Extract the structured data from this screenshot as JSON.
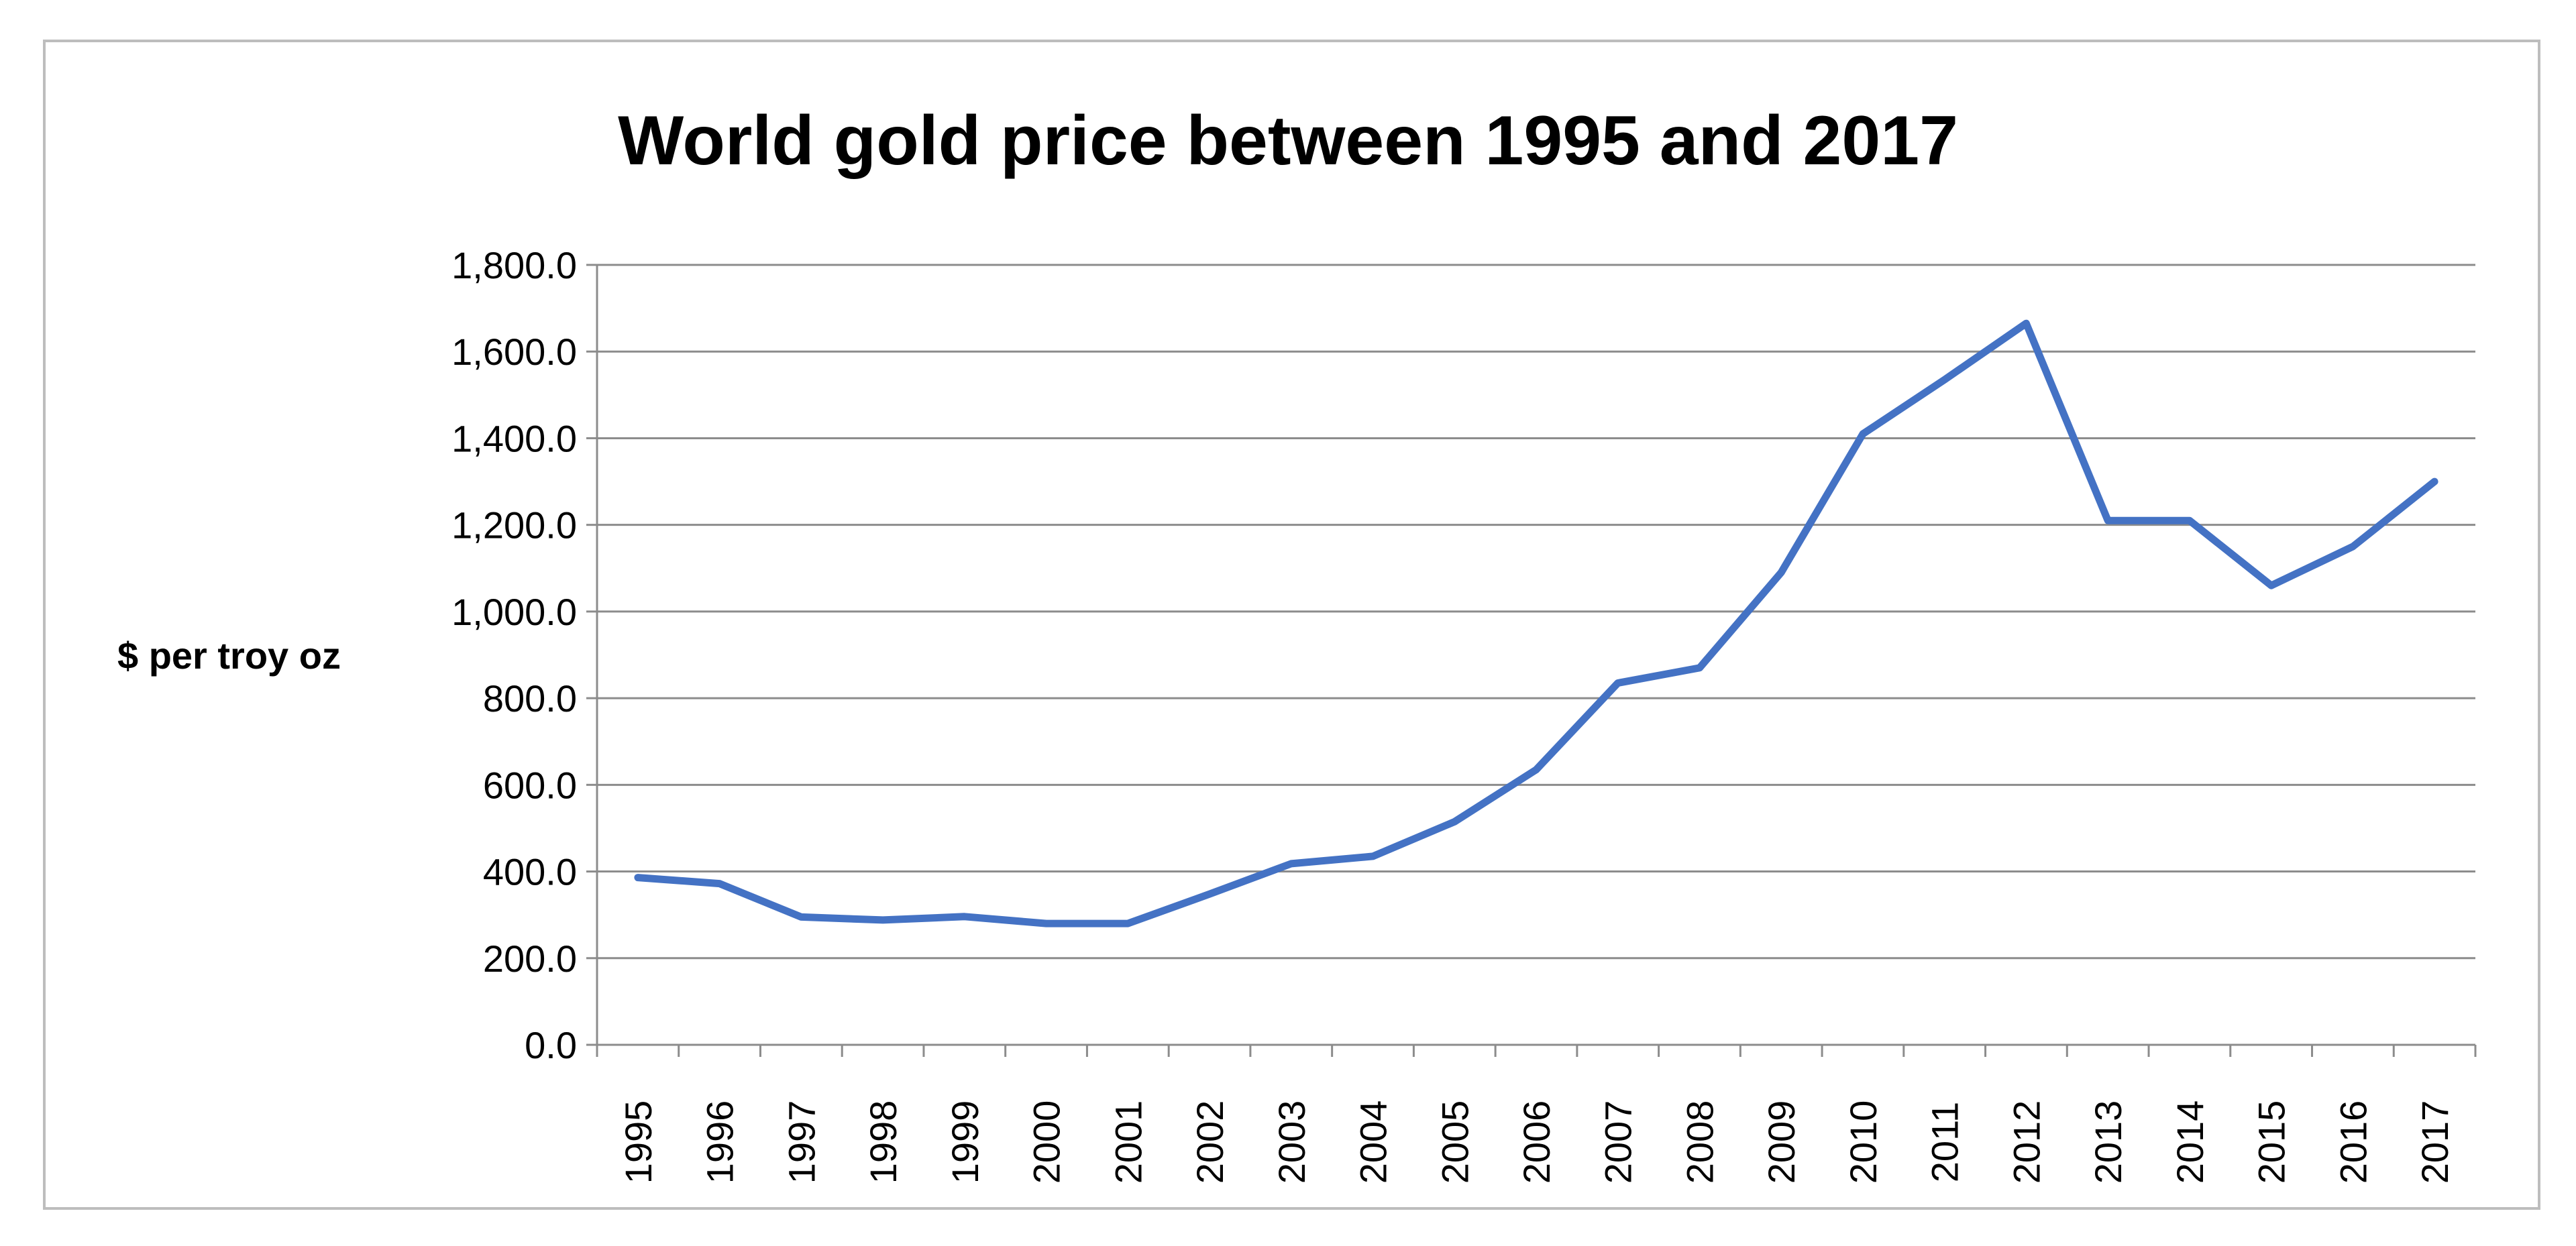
{
  "chart_data": {
    "type": "line",
    "title": "World gold price between 1995 and 2017",
    "xlabel": "",
    "ylabel": "$ per troy oz",
    "categories": [
      "1995",
      "1996",
      "1997",
      "1998",
      "1999",
      "2000",
      "2001",
      "2002",
      "2003",
      "2004",
      "2005",
      "2006",
      "2007",
      "2008",
      "2009",
      "2010",
      "2011",
      "2012",
      "2013",
      "2014",
      "2015",
      "2016",
      "2017"
    ],
    "series": [
      {
        "name": "",
        "color": "#4472C4",
        "values": [
          386,
          372,
          295,
          288,
          296,
          280,
          280,
          348,
          418,
          435,
          515,
          635,
          835,
          870,
          1090,
          1410,
          1535,
          1665,
          1210,
          1210,
          1060,
          1150,
          1300
        ]
      }
    ],
    "ylim": [
      0,
      1800
    ],
    "yticks": [
      "0.0",
      "200.0",
      "400.0",
      "600.0",
      "800.0",
      "1,000.0",
      "1,200.0",
      "1,400.0",
      "1,600.0",
      "1,800.0"
    ],
    "grid": true,
    "legend": "none",
    "colors": {
      "line": "#4472C4",
      "grid": "#8c8c8c",
      "frame": "#bdbdbd"
    }
  }
}
